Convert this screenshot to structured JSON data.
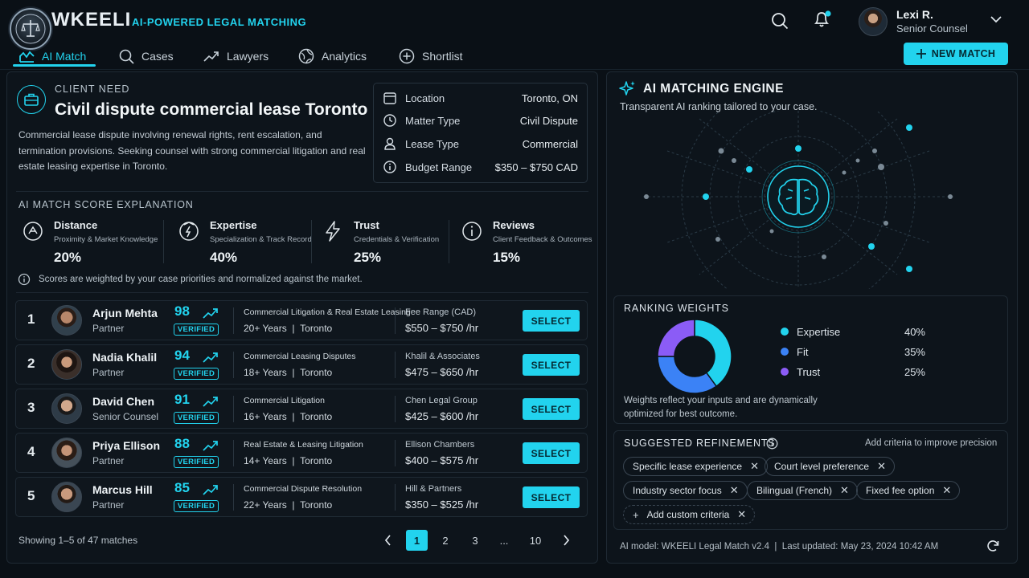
{
  "brand": {
    "name": "WKEELI",
    "tagline": "AI-POWERED LEGAL MATCHING"
  },
  "nav": [
    {
      "label": "AI Match",
      "icon": "chart-icon",
      "active": true
    },
    {
      "label": "Cases",
      "icon": "search-icon"
    },
    {
      "label": "Lawyers",
      "icon": "trend-icon"
    },
    {
      "label": "Analytics",
      "icon": "globe-icon"
    },
    {
      "label": "Shortlist",
      "icon": "plus-circle-icon"
    }
  ],
  "new_match_label": "NEW MATCH",
  "user": {
    "name": "Lexi R.",
    "role": "Senior Counsel"
  },
  "client": {
    "label": "CLIENT NEED",
    "title": "Civil dispute commercial lease Toronto",
    "description": "Commercial lease dispute involving renewal rights, rent escalation, and termination provisions. Seeking counsel with strong commercial litigation and real estate leasing expertise in Toronto.",
    "details": [
      {
        "label": "Location",
        "value": "Toronto, ON",
        "icon": "calendar-icon"
      },
      {
        "label": "Matter Type",
        "value": "Civil Dispute",
        "icon": "clock-icon"
      },
      {
        "label": "Lease Type",
        "value": "Commercial",
        "icon": "person-icon"
      },
      {
        "label": "Budget Range",
        "value": "$350 – $750 CAD",
        "icon": "info-icon"
      }
    ]
  },
  "score_explanation": {
    "heading": "AI MATCH SCORE EXPLANATION",
    "factors": [
      {
        "name": "Distance",
        "desc": "Proximity & Market Knowledge",
        "pct": "20%",
        "icon": "distance-icon"
      },
      {
        "name": "Expertise",
        "desc": "Specialization & Track Record",
        "pct": "40%",
        "icon": "expertise-icon"
      },
      {
        "name": "Trust",
        "desc": "Credentials & Verification",
        "pct": "25%",
        "icon": "bolt-icon"
      },
      {
        "name": "Reviews",
        "desc": "Client Feedback & Outcomes",
        "pct": "15%",
        "icon": "info-icon"
      }
    ],
    "note": "Scores are weighted by your case priorities and normalized against the market."
  },
  "lawyers": [
    {
      "rank": "1",
      "name": "Arjun Mehta",
      "role": "Partner",
      "score": "98",
      "badge": "VERIFIED",
      "specialty": "Commercial Litigation & Real Estate Leasing",
      "years": "20+ Years",
      "city": "Toronto",
      "firm": "Fee Range (CAD)",
      "fee": "$550 – $750 /hr",
      "action": "SELECT"
    },
    {
      "rank": "2",
      "name": "Nadia Khalil",
      "role": "Partner",
      "score": "94",
      "badge": "VERIFIED",
      "specialty": "Commercial Leasing Disputes",
      "years": "18+ Years",
      "city": "Toronto",
      "firm": "Khalil & Associates",
      "fee": "$475 – $650 /hr",
      "action": "SELECT"
    },
    {
      "rank": "3",
      "name": "David Chen",
      "role": "Senior Counsel",
      "score": "91",
      "badge": "VERIFIED",
      "specialty": "Commercial Litigation",
      "years": "16+ Years",
      "city": "Toronto",
      "firm": "Chen Legal Group",
      "fee": "$425 – $600 /hr",
      "action": "SELECT"
    },
    {
      "rank": "4",
      "name": "Priya Ellison",
      "role": "Partner",
      "score": "88",
      "badge": "VERIFIED",
      "specialty": "Real Estate & Leasing Litigation",
      "years": "14+ Years",
      "city": "Toronto",
      "firm": "Ellison Chambers",
      "fee": "$400 – $575 /hr",
      "action": "SELECT"
    },
    {
      "rank": "5",
      "name": "Marcus Hill",
      "role": "Partner",
      "score": "85",
      "badge": "VERIFIED",
      "specialty": "Commercial Dispute Resolution",
      "years": "22+ Years",
      "city": "Toronto",
      "firm": "Hill & Partners",
      "fee": "$350 – $525 /hr",
      "action": "SELECT"
    }
  ],
  "pagination": {
    "showing": "Showing 1–5 of 47 matches",
    "pages": [
      "1",
      "2",
      "3",
      "...",
      "10"
    ],
    "active": "1"
  },
  "engine": {
    "title": "AI MATCHING ENGINE",
    "subtitle": "Transparent AI ranking tailored to your case."
  },
  "ranking_weights": {
    "heading": "RANKING WEIGHTS",
    "items": [
      {
        "label": "Expertise",
        "value": "40%",
        "fraction": 0.4,
        "color": "#22d3ee"
      },
      {
        "label": "Fit",
        "value": "35%",
        "fraction": 0.35,
        "color": "#3b82f6"
      },
      {
        "label": "Trust",
        "value": "25%",
        "fraction": 0.25,
        "color": "#8b5cf6"
      }
    ],
    "note": "Weights reflect your inputs and are dynamically optimized for best outcome."
  },
  "refinements": {
    "heading": "SUGGESTED REFINEMENTS",
    "hint": "Add criteria to improve precision",
    "chips": [
      "Specific lease experience",
      "Court level preference",
      "Industry sector focus",
      "Bilingual (French)",
      "Fixed fee option"
    ],
    "add_label": "Add custom criteria"
  },
  "footer": {
    "model": "AI model: WKEELI Legal Match v2.4",
    "updated": "Last updated: May 23, 2024 10:42 AM"
  }
}
